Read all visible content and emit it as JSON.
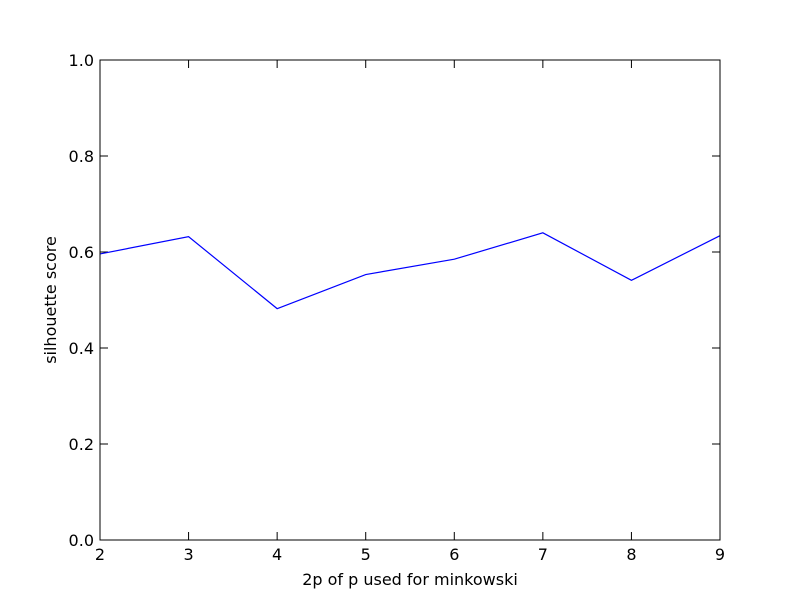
{
  "chart_data": {
    "type": "line",
    "title": "",
    "xlabel": "2p of p used for minkowski",
    "ylabel": "silhouette score",
    "xlim": [
      2,
      9
    ],
    "ylim": [
      0.0,
      1.0
    ],
    "x_ticks": [
      2,
      3,
      4,
      5,
      6,
      7,
      8,
      9
    ],
    "x_tick_labels": [
      "2",
      "3",
      "4",
      "5",
      "6",
      "7",
      "8",
      "9"
    ],
    "y_ticks": [
      0.0,
      0.2,
      0.4,
      0.6,
      0.8,
      1.0
    ],
    "y_tick_labels": [
      "0.0",
      "0.2",
      "0.4",
      "0.6",
      "0.8",
      "1.0"
    ],
    "grid": false,
    "legend": "none",
    "series": [
      {
        "x": [
          2,
          3,
          4,
          5,
          6,
          7,
          8,
          9
        ],
        "values": [
          0.596,
          0.632,
          0.482,
          0.553,
          0.585,
          0.64,
          0.541,
          0.634
        ],
        "color": "#0000ff"
      }
    ]
  }
}
